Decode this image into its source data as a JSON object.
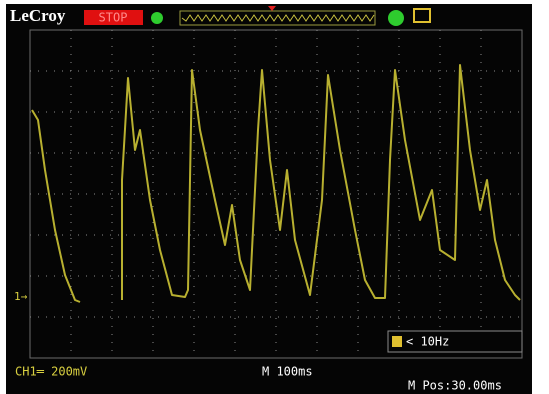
{
  "header": {
    "brand": "LeCroy",
    "status": "STOP"
  },
  "trigger": {
    "frequency": "< 10Hz"
  },
  "footer": {
    "channel": "CH1═ 200mV",
    "timebase": "M 100ms",
    "position": "M Pos:30.00ms"
  }
}
